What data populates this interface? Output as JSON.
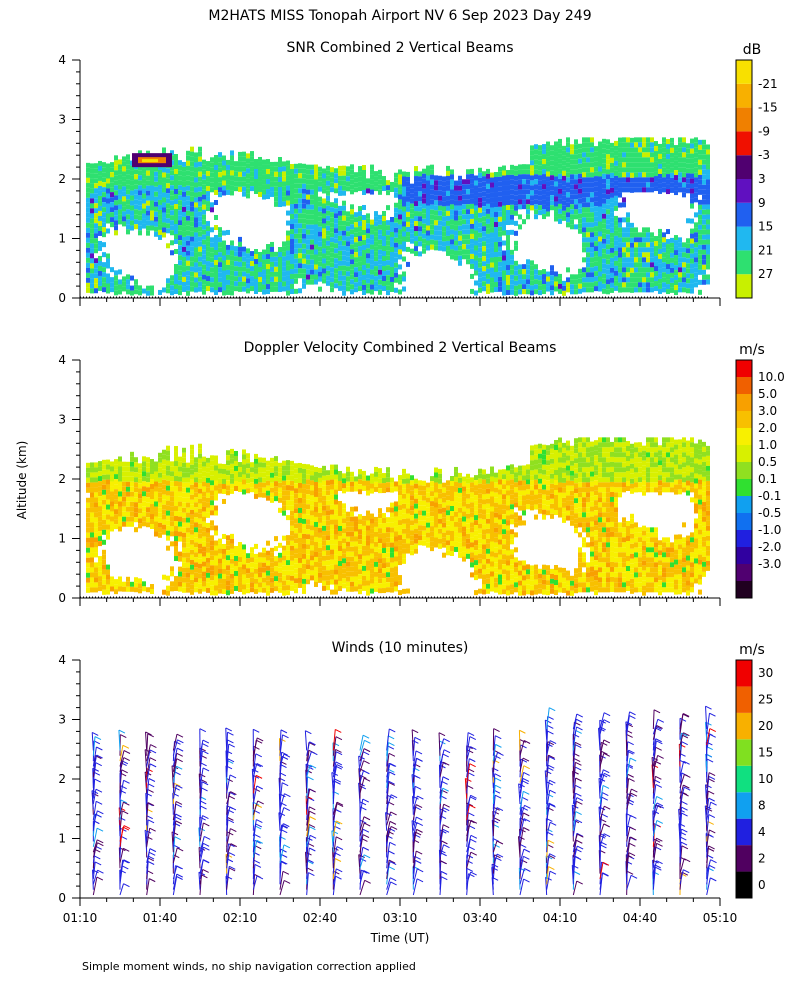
{
  "figure": {
    "title": "M2HATS MISS Tonopah Airport NV   6 Sep 2023 Day 249",
    "shared_ylabel": "Altitude (km)",
    "xlabel": "Time (UT)",
    "footnote": "Simple moment winds, no ship navigation correction applied"
  },
  "colors": {
    "axis": "#000000",
    "background": "#ffffff"
  },
  "chart_data": [
    {
      "type": "heatmap",
      "title": "SNR Combined 2 Vertical Beams",
      "units": "dB",
      "ylim": [
        0,
        4
      ],
      "yticks": [
        "0",
        "1",
        "2",
        "3",
        "4"
      ],
      "xrange_minutes": [
        70,
        310
      ],
      "tick_times_min": [
        70,
        100,
        130,
        160,
        190,
        220,
        250,
        280,
        310
      ],
      "colorbar": {
        "labels": [
          "-21",
          "-15",
          "-9",
          "-3",
          "3",
          "9",
          "15",
          "21",
          "27"
        ],
        "colors": [
          "#c8f000",
          "#2ee070",
          "#20b8f0",
          "#2060f0",
          "#6010c0",
          "#500070",
          "#f01000",
          "#f08000",
          "#f8b000",
          "#f8e000"
        ]
      },
      "description_fields": {
        "boundary_layer_top_km": 2.3,
        "strong_echo_near": {
          "time": "01:40",
          "altitude_km": 2.3
        }
      }
    },
    {
      "type": "heatmap",
      "title": "Doppler Velocity Combined 2 Vertical Beams",
      "units": "m/s",
      "ylim": [
        0,
        4
      ],
      "yticks": [
        "0",
        "1",
        "2",
        "3",
        "4"
      ],
      "xrange_minutes": [
        70,
        310
      ],
      "tick_times_min": [
        70,
        100,
        130,
        160,
        190,
        220,
        250,
        280,
        310
      ],
      "colorbar": {
        "labels": [
          "10.0",
          "5.0",
          "3.0",
          "2.0",
          "1.0",
          "0.5",
          "0.1",
          "-0.1",
          "-0.5",
          "-1.0",
          "-2.0",
          "-3.0"
        ],
        "colors": [
          "#200020",
          "#500070",
          "#3000a0",
          "#2020e0",
          "#1070f0",
          "#10a0f0",
          "#30e030",
          "#90e020",
          "#d8f000",
          "#f8f000",
          "#f8c000",
          "#f8a000",
          "#f06000",
          "#f00000"
        ]
      }
    },
    {
      "type": "barbs",
      "title": "Winds (10 minutes)",
      "units": "m/s",
      "ylim": [
        0,
        4
      ],
      "yticks": [
        "0",
        "1",
        "2",
        "3",
        "4"
      ],
      "xrange_minutes": [
        70,
        310
      ],
      "tick_times_min": [
        70,
        100,
        130,
        160,
        190,
        220,
        250,
        280,
        310
      ],
      "xtick_labels": [
        "01:10",
        "01:40",
        "02:10",
        "02:40",
        "03:10",
        "03:40",
        "04:10",
        "04:40",
        "05:10"
      ],
      "barb_times_min": [
        75,
        85,
        95,
        105,
        115,
        125,
        135,
        145,
        155,
        165,
        175,
        185,
        195,
        205,
        215,
        225,
        235,
        245,
        255,
        265,
        275,
        285,
        295,
        305
      ],
      "colorbar": {
        "labels": [
          "30",
          "25",
          "20",
          "15",
          "10",
          "8",
          "4",
          "2",
          "0"
        ],
        "colors": [
          "#000000",
          "#500060",
          "#2020e0",
          "#10a0f0",
          "#10e080",
          "#80e020",
          "#f8b000",
          "#f06000",
          "#f00000"
        ]
      }
    }
  ]
}
